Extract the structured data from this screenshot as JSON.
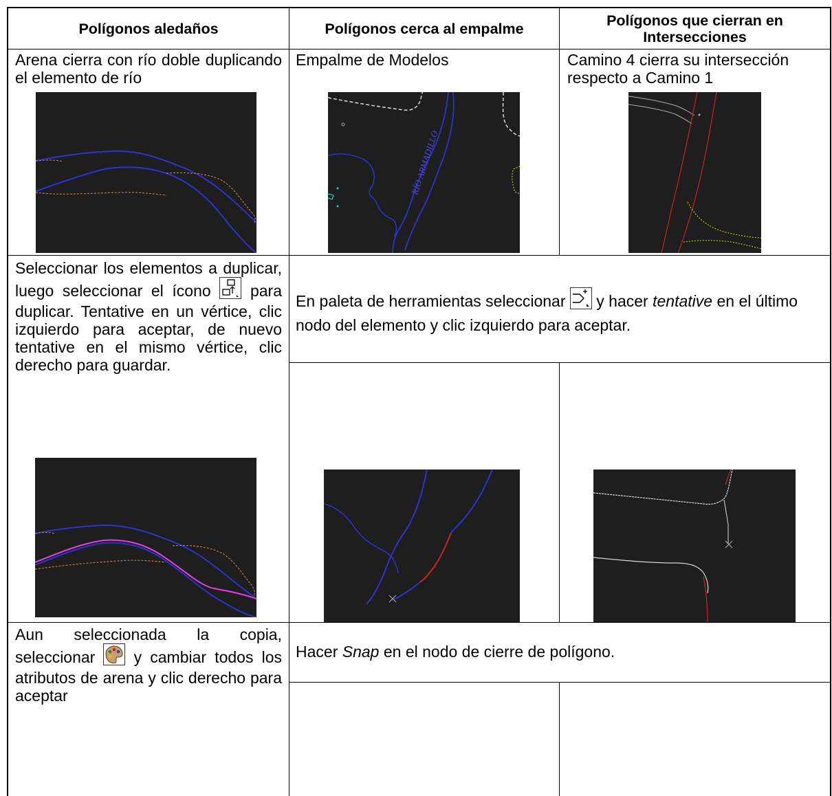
{
  "table": {
    "headers": [
      "Polígonos aledaños",
      "Polígonos cerca al empalme",
      "Polígonos que cierran en Intersecciones"
    ],
    "row1": {
      "col1": "Arena cierra con río doble duplicando el elemento de río",
      "col2": "Empalme de Modelos",
      "col3": "Camino 4 cierra su intersección respecto a Camino 1",
      "map_label": "RÍO ARMADILLO"
    },
    "row2": {
      "col1_part1": "Seleccionar los elementos a duplicar, luego seleccionar el ícono",
      "col1_part2": "para duplicar. Tentative en un vértice, clic izquierdo para aceptar, de nuevo tentative en el mismo vértice, clic derecho para guardar.",
      "merged_part1": "En paleta de herramientas seleccionar",
      "merged_part2": "y hacer",
      "merged_italic": "tentative",
      "merged_part3": "en el último nodo del elemento y clic izquierdo para aceptar."
    },
    "row3": {
      "col1_part1": "Aun seleccionada la copia, seleccionar",
      "col1_part2": "y cambiar todos los atributos de arena y clic derecho para aceptar",
      "merged_part1": "Hacer",
      "merged_italic": "Snap",
      "merged_part2": "en el nodo de cierre de polígono."
    }
  },
  "icons": [
    "duplicate-icon",
    "extend-line-icon",
    "change-attributes-palette-icon"
  ],
  "colors": {
    "image_background": "#1e1e1e",
    "river_line": "#3030d0",
    "sand_line": "#b07a50",
    "selected_copy": "#e040e0",
    "road_line": "#cc2222",
    "cursor_gray": "#b0b0b0"
  }
}
